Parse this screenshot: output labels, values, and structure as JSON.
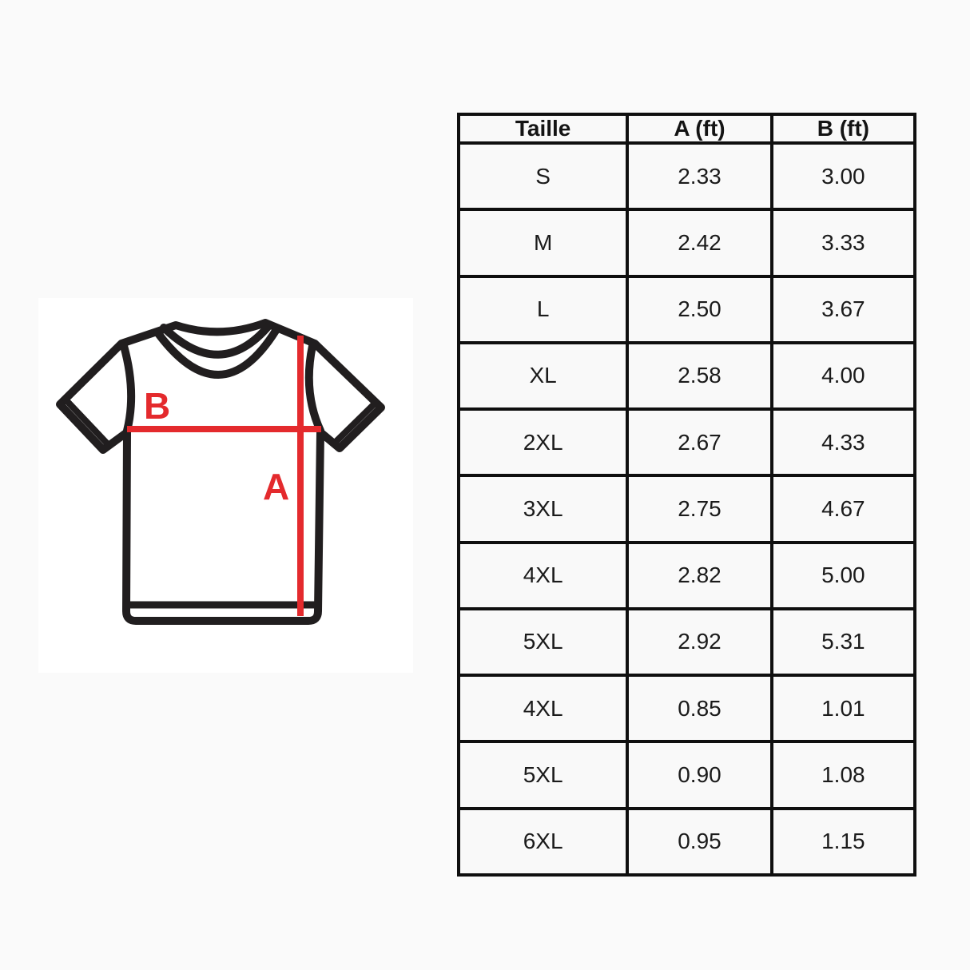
{
  "colors": {
    "accent_red": "#e42a2d",
    "outline_black": "#211e1f",
    "table_border": "#0f0f0f",
    "page_background": "#fafafa"
  },
  "diagram": {
    "label_a": "A",
    "label_b": "B"
  },
  "table": {
    "columns": [
      "Taille",
      "A (ft)",
      "B (ft)"
    ],
    "rows": [
      [
        "S",
        "2.33",
        "3.00"
      ],
      [
        "M",
        "2.42",
        "3.33"
      ],
      [
        "L",
        "2.50",
        "3.67"
      ],
      [
        "XL",
        "2.58",
        "4.00"
      ],
      [
        "2XL",
        "2.67",
        "4.33"
      ],
      [
        "3XL",
        "2.75",
        "4.67"
      ],
      [
        "4XL",
        "2.82",
        "5.00"
      ],
      [
        "5XL",
        "2.92",
        "5.31"
      ],
      [
        "4XL",
        "0.85",
        "1.01"
      ],
      [
        "5XL",
        "0.90",
        "1.08"
      ],
      [
        "6XL",
        "0.95",
        "1.15"
      ]
    ]
  }
}
